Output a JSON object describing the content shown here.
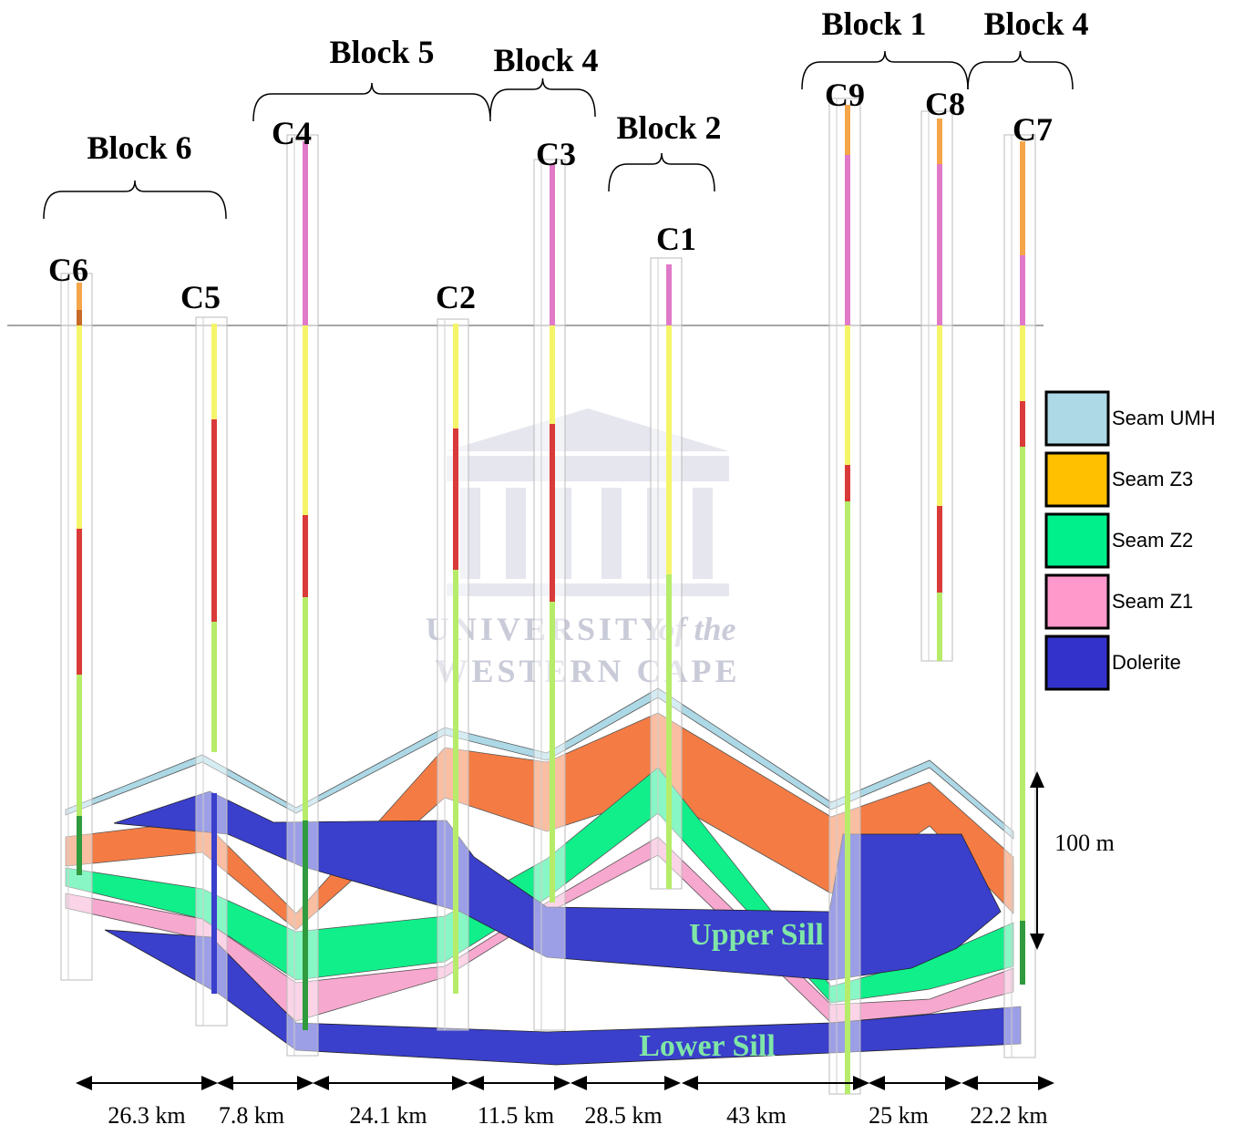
{
  "blocks": [
    "Block 6",
    "Block 5",
    "Block 4",
    "Block 2",
    "Block 1",
    "Block 4"
  ],
  "boreholes": [
    "C6",
    "C5",
    "C4",
    "C2",
    "C3",
    "C1",
    "C9",
    "C8",
    "C7"
  ],
  "legend": [
    "Seam UMH",
    "Seam Z3",
    "Seam Z2",
    "Seam Z1",
    "Dolerite"
  ],
  "scale": "100 m",
  "sills": [
    "Upper Sill",
    "Lower Sill"
  ],
  "distances": [
    "26.3 km",
    "7.8 km",
    "24.1 km",
    "11.5 km",
    "28.5 km",
    "43 km",
    "25 km",
    "22.2 km"
  ],
  "watermark": [
    "UNIVERSITY",
    "of the",
    "WESTERN CAPE"
  ]
}
